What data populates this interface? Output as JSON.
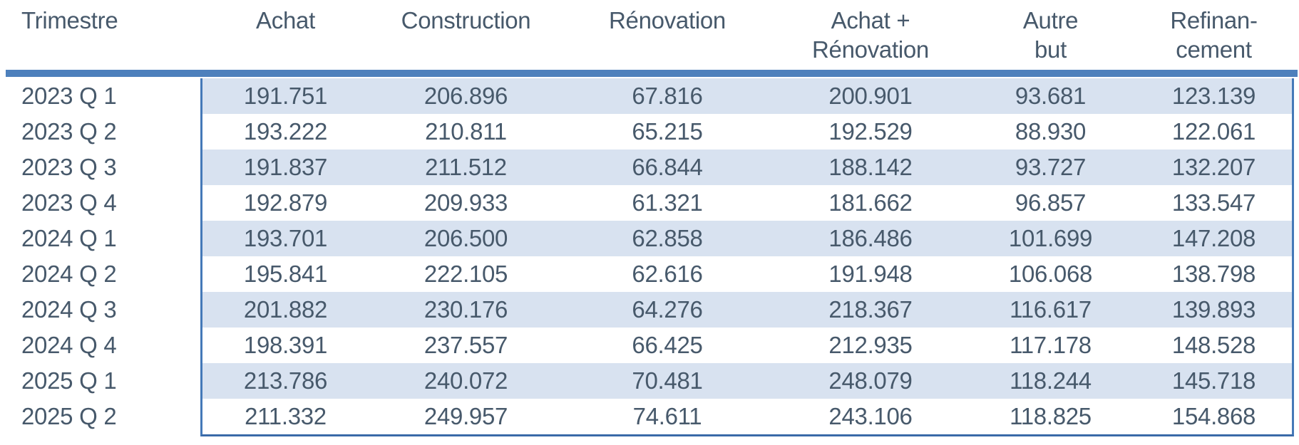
{
  "colors": {
    "accent_bar": "#4D80BC",
    "data_frame_border": "#4579B8",
    "row_band_fill": "#D8E2F0",
    "text": "#47596B",
    "background": "#ffffff"
  },
  "header": {
    "columns": [
      {
        "line1": "Trimestre",
        "line2": ""
      },
      {
        "line1": "Achat",
        "line2": ""
      },
      {
        "line1": "Construction",
        "line2": ""
      },
      {
        "line1": "Rénovation",
        "line2": ""
      },
      {
        "line1": "Achat +",
        "line2": "Rénovation"
      },
      {
        "line1": "Autre",
        "line2": "but"
      },
      {
        "line1": "Refinan-",
        "line2": "cement"
      }
    ]
  },
  "chart_data": {
    "type": "table",
    "title": "",
    "columns": [
      "Trimestre",
      "Achat",
      "Construction",
      "Rénovation",
      "Achat + Rénovation",
      "Autre but",
      "Refinan-cement"
    ],
    "rows": [
      [
        "2023 Q 1",
        "191.751",
        "206.896",
        "67.816",
        "200.901",
        "93.681",
        "123.139"
      ],
      [
        "2023 Q 2",
        "193.222",
        "210.811",
        "65.215",
        "192.529",
        "88.930",
        "122.061"
      ],
      [
        "2023 Q 3",
        "191.837",
        "211.512",
        "66.844",
        "188.142",
        "93.727",
        "132.207"
      ],
      [
        "2023 Q 4",
        "192.879",
        "209.933",
        "61.321",
        "181.662",
        "96.857",
        "133.547"
      ],
      [
        "2024 Q 1",
        "193.701",
        "206.500",
        "62.858",
        "186.486",
        "101.699",
        "147.208"
      ],
      [
        "2024 Q 2",
        "195.841",
        "222.105",
        "62.616",
        "191.948",
        "106.068",
        "138.798"
      ],
      [
        "2024 Q 3",
        "201.882",
        "230.176",
        "64.276",
        "218.367",
        "116.617",
        "139.893"
      ],
      [
        "2024 Q 4",
        "198.391",
        "237.557",
        "66.425",
        "212.935",
        "117.178",
        "148.528"
      ],
      [
        "2025 Q 1",
        "213.786",
        "240.072",
        "70.481",
        "248.079",
        "118.244",
        "145.718"
      ],
      [
        "2025 Q 2",
        "211.332",
        "249.957",
        "74.611",
        "243.106",
        "118.825",
        "154.868"
      ]
    ],
    "layout": {
      "banded_rows": "odd rows shaded light blue (cols 2-7 only)",
      "grid": "no inner vertical lines",
      "legend": "none"
    }
  }
}
